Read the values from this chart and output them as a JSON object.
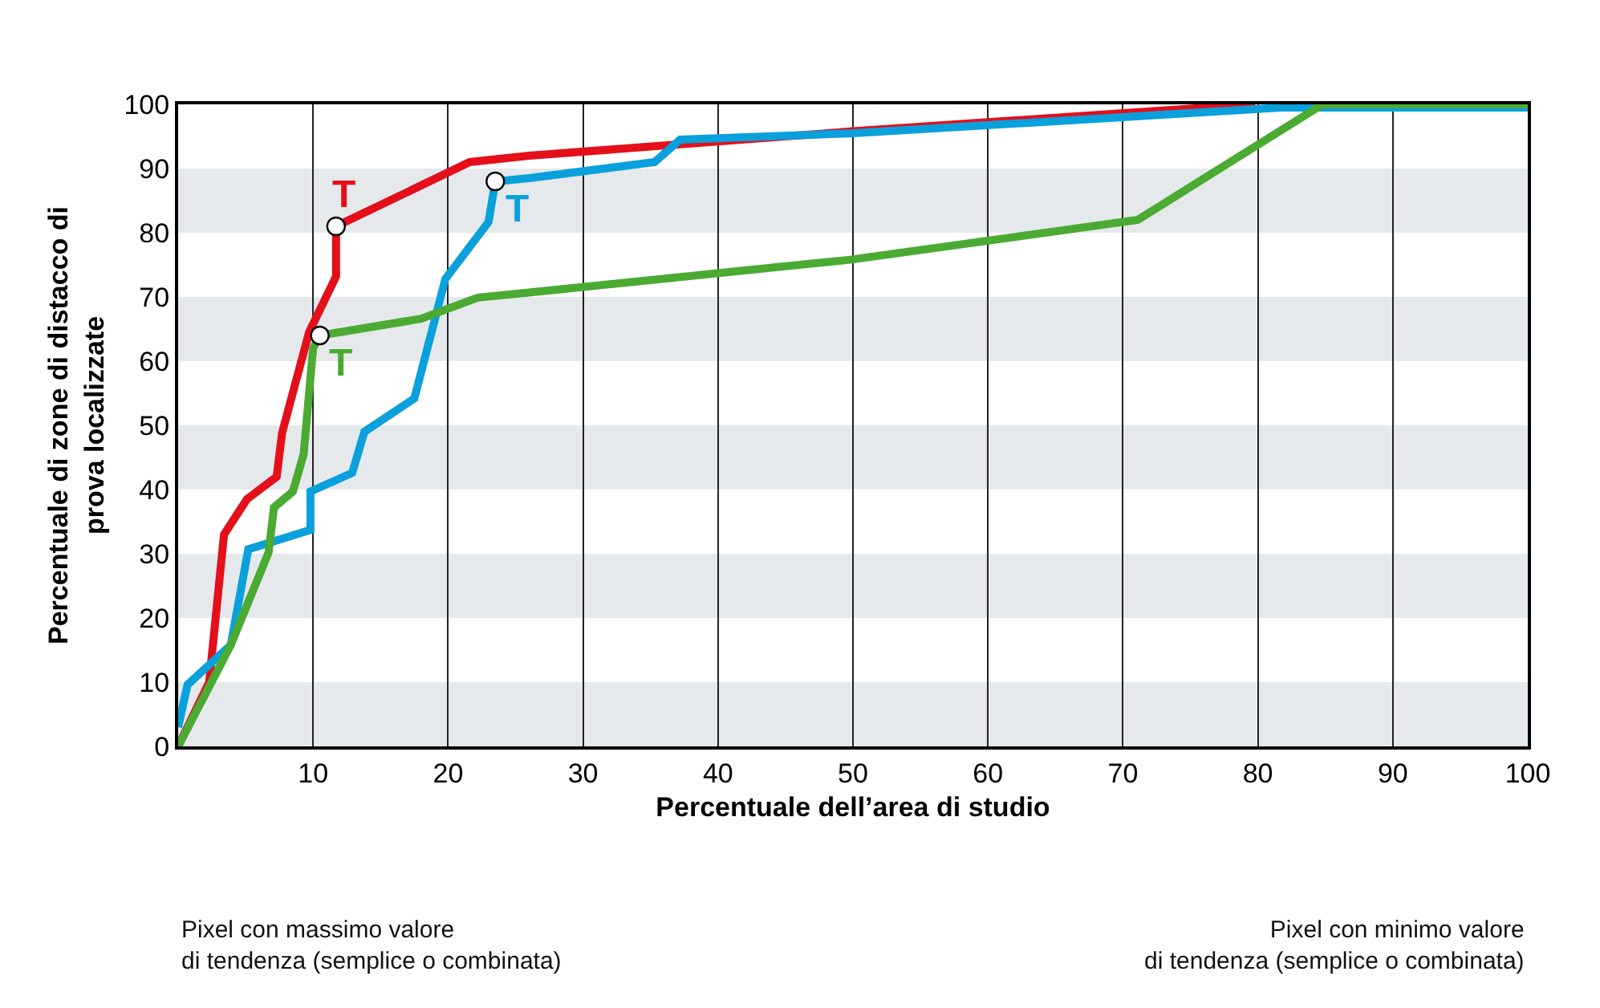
{
  "chart_data": {
    "type": "line",
    "xlabel": "Percentuale dell’area di studio",
    "ylabel": "Percentuale di zone di distacco di\nprova localizzate",
    "xlim": [
      0,
      100
    ],
    "ylim": [
      0,
      100
    ],
    "xticks": [
      {
        "value": 0,
        "label": null
      },
      10,
      20,
      30,
      40,
      50,
      60,
      70,
      80,
      90,
      100
    ],
    "yticks": [
      0,
      10,
      20,
      30,
      40,
      50,
      60,
      70,
      80,
      90,
      100
    ],
    "grid": "x",
    "marker": "none",
    "line_style": "solid",
    "bands": [
      {
        "axis": "y",
        "from": 0,
        "to": 10,
        "color": "#e6e9ec"
      },
      {
        "axis": "y",
        "from": 20,
        "to": 30,
        "color": "#e6e9ec"
      },
      {
        "axis": "y",
        "from": 40,
        "to": 50,
        "color": "#e6e9ec"
      },
      {
        "axis": "y",
        "from": 60,
        "to": 70,
        "color": "#e6e9ec"
      },
      {
        "axis": "y",
        "from": 80,
        "to": 90,
        "color": "#e6e9ec"
      }
    ],
    "series": [
      {
        "color": "#e3101b",
        "x": [
          0,
          2.3,
          3.4,
          5.1,
          7.3,
          7.7,
          9.7,
          11.7,
          11.7,
          21.6,
          26,
          50,
          79.8
        ],
        "values": [
          0,
          10,
          33,
          38.5,
          42,
          48.8,
          64.5,
          73.2,
          81,
          91,
          92,
          95.8,
          100
        ]
      },
      {
        "color": "#0aa0dc",
        "x": [
          0,
          0.7,
          3.9,
          5.2,
          9.8,
          9.8,
          12.9,
          13.8,
          17.5,
          19.8,
          23,
          23.5,
          26,
          35.3,
          37.2,
          50,
          70,
          81.7,
          100
        ],
        "values": [
          3,
          9.6,
          15.8,
          30.7,
          33.7,
          39.7,
          42.6,
          49,
          54.2,
          72.8,
          81.7,
          88,
          88.5,
          91,
          94.5,
          95.5,
          98,
          99.5,
          99.5
        ]
      },
      {
        "color": "#4aaa32",
        "x": [
          0,
          3.9,
          6.7,
          7.1,
          8.5,
          9.3,
          10,
          10.5,
          18,
          22.2,
          26,
          49.8,
          71.1,
          84.8,
          100
        ],
        "values": [
          0,
          15.8,
          30.2,
          37.2,
          39.7,
          45.5,
          62,
          64,
          66.6,
          69.9,
          70.7,
          75.8,
          82,
          100,
          100
        ]
      }
    ],
    "annotations": [
      {
        "text": "T",
        "x": 11.7,
        "y": 81
      },
      {
        "text": "T",
        "x": 23.5,
        "y": 88
      },
      {
        "text": "T",
        "x": 10.5,
        "y": 64
      },
      "Pixel con massimo valore\ndi tendenza (semplice o combinata)",
      "Pixel con minimo valore\ndi tendenza (semplice o combinata)"
    ]
  }
}
